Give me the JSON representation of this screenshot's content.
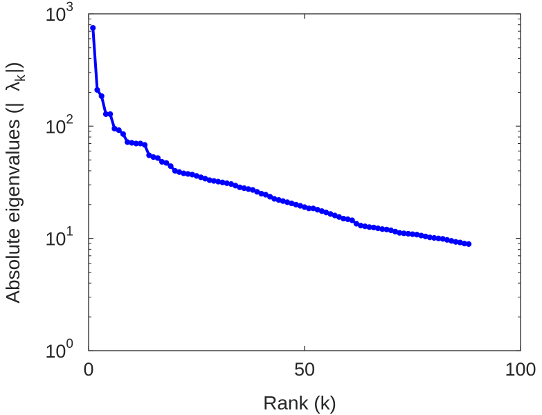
{
  "chart_data": {
    "type": "line",
    "xlabel": "Rank (k)",
    "ylabel": {
      "prefix": "Absolute eigenvalues (|",
      "lambda": "λ",
      "subscript": "k",
      "suffix": "|)"
    },
    "xlim": [
      0,
      100
    ],
    "ylim": [
      1,
      1000
    ],
    "yscale": "log",
    "grid": false,
    "box": true,
    "x_ticks": [
      {
        "value": 0,
        "label": "0"
      },
      {
        "value": 50,
        "label": "50"
      },
      {
        "value": 100,
        "label": "100"
      }
    ],
    "y_ticks": [
      {
        "value": 1,
        "base": "10",
        "exp": "0"
      },
      {
        "value": 10,
        "base": "10",
        "exp": "1"
      },
      {
        "value": 100,
        "base": "10",
        "exp": "2"
      },
      {
        "value": 1000,
        "base": "10",
        "exp": "3"
      }
    ],
    "series": [
      {
        "color": "#0000ff",
        "marker": "circle",
        "x": [
          1,
          2,
          3,
          4,
          5,
          6,
          7,
          8,
          9,
          10,
          11,
          12,
          13,
          14,
          15,
          16,
          17,
          18,
          19,
          20,
          21,
          22,
          23,
          24,
          25,
          26,
          27,
          28,
          29,
          30,
          31,
          32,
          33,
          34,
          35,
          36,
          37,
          38,
          39,
          40,
          41,
          42,
          43,
          44,
          45,
          46,
          47,
          48,
          49,
          50,
          51,
          52,
          53,
          54,
          55,
          56,
          57,
          58,
          59,
          60,
          61,
          62,
          63,
          64,
          65,
          66,
          67,
          68,
          69,
          70,
          71,
          72,
          73,
          74,
          75,
          76,
          77,
          78,
          79,
          80,
          81,
          82,
          83,
          84,
          85,
          86,
          87,
          88
        ],
        "values": [
          750,
          210,
          185,
          128,
          128,
          95,
          92,
          85,
          72,
          71,
          70,
          70,
          68,
          55,
          53,
          52,
          48,
          47,
          44,
          40,
          39,
          38,
          37.5,
          37,
          36,
          35,
          34,
          33,
          32.5,
          32,
          31.5,
          31,
          30.5,
          29.5,
          28.5,
          28,
          27.5,
          27,
          26,
          25,
          24.5,
          23.5,
          22.5,
          22,
          21.5,
          21,
          20.5,
          20,
          19.5,
          19,
          18.5,
          18.5,
          18,
          17.5,
          17,
          16.5,
          16,
          15.5,
          15,
          14.8,
          14.5,
          13.5,
          13,
          12.8,
          12.6,
          12.5,
          12.3,
          12.1,
          12,
          11.8,
          11.5,
          11.2,
          11.1,
          11,
          10.9,
          10.8,
          10.6,
          10.4,
          10.2,
          10.1,
          10,
          9.9,
          9.7,
          9.5,
          9.3,
          9.2,
          9.0,
          8.9
        ]
      }
    ]
  }
}
